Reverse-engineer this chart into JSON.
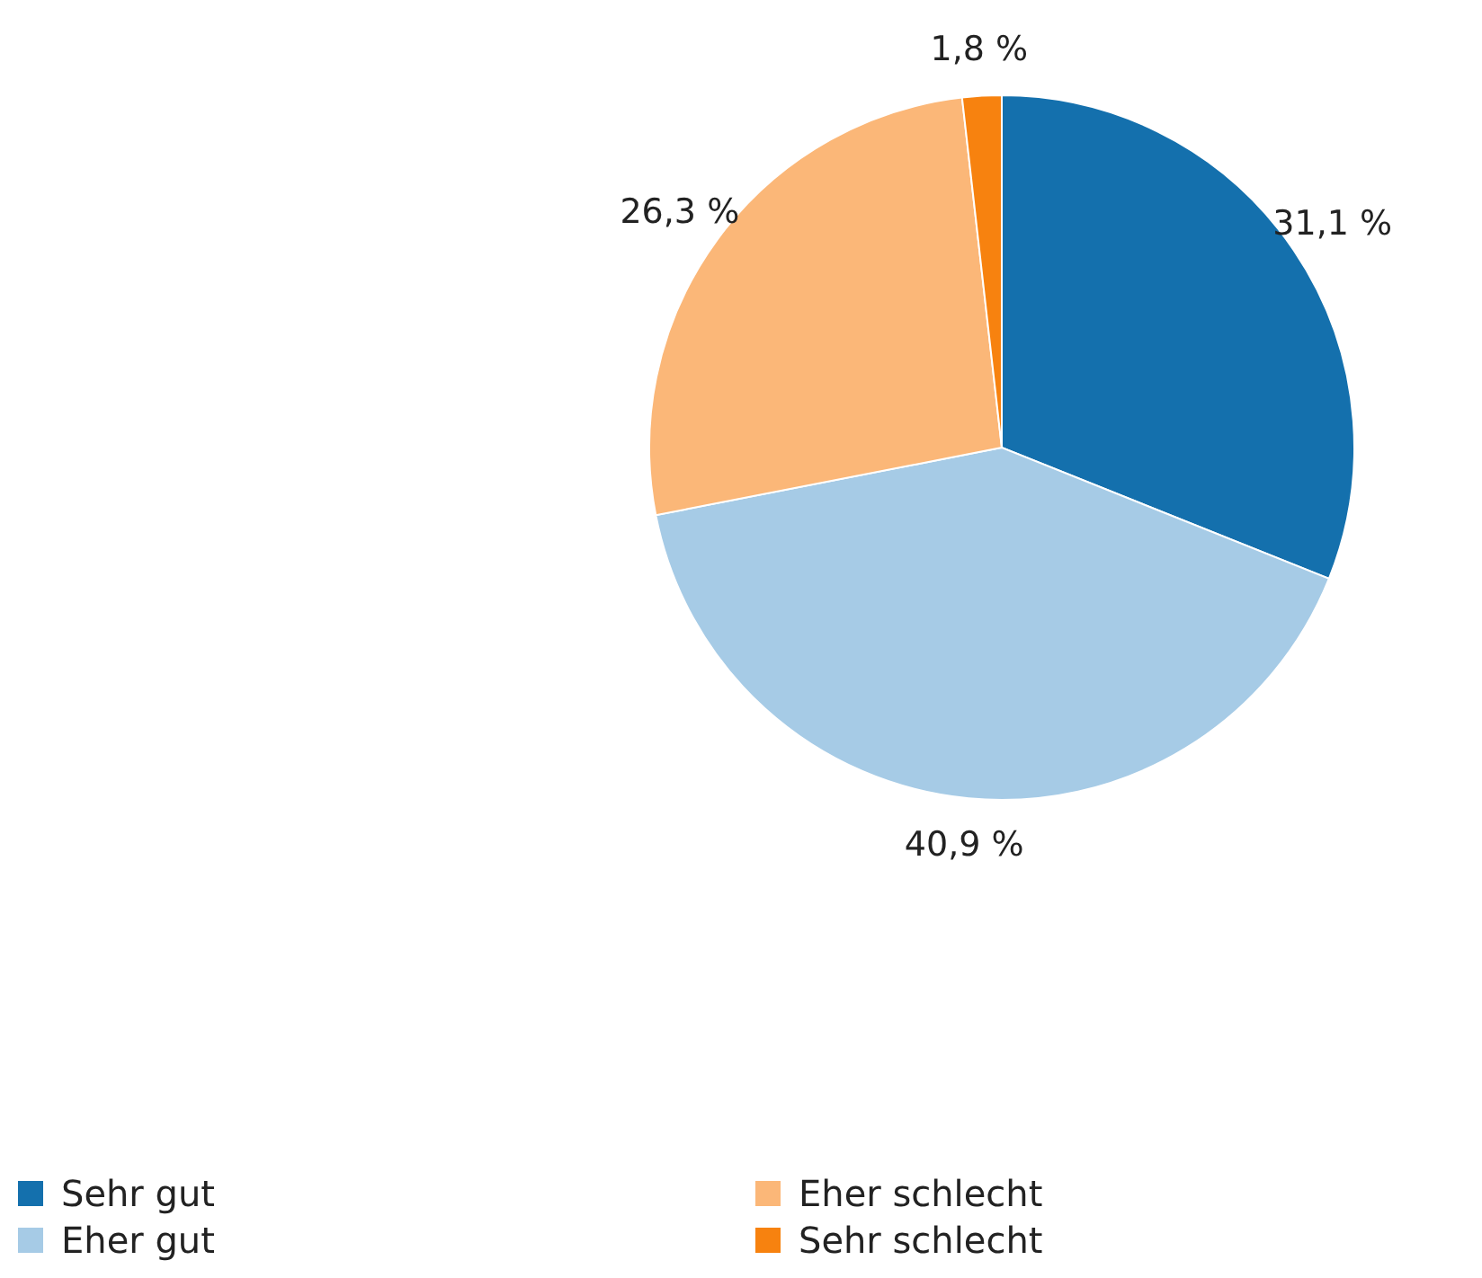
{
  "chart_data": {
    "type": "pie",
    "categories": [
      "Sehr gut",
      "Eher gut",
      "Eher schlecht",
      "Sehr schlecht"
    ],
    "values": [
      31.1,
      40.9,
      26.3,
      1.8
    ],
    "value_labels": [
      "31,1 %",
      "40,9 %",
      "26,3 %",
      "1,8 %"
    ],
    "colors": [
      "#1470ad",
      "#a6cbe6",
      "#fbb778",
      "#f7820f"
    ],
    "legend": "bottom"
  }
}
